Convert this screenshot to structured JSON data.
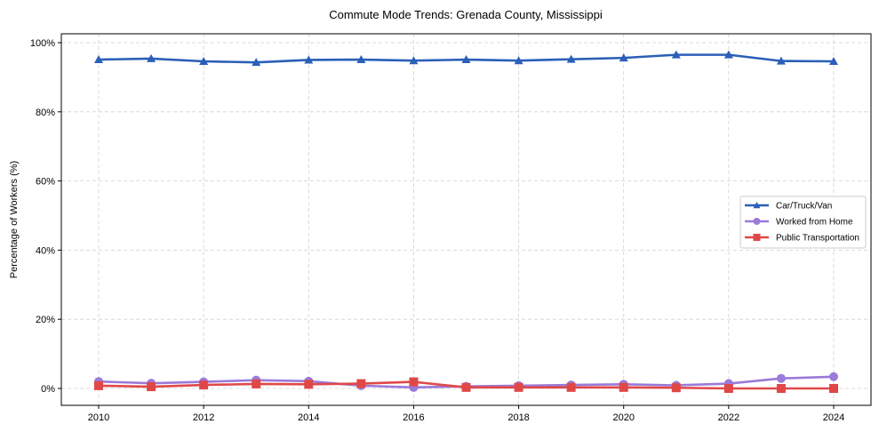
{
  "chart_data": {
    "type": "line",
    "title": "Commute Mode Trends: Grenada County, Mississippi",
    "xlabel": "",
    "ylabel": "Percentage of Workers (%)",
    "x": [
      2010,
      2011,
      2012,
      2013,
      2014,
      2015,
      2016,
      2017,
      2018,
      2019,
      2020,
      2021,
      2022,
      2023,
      2024
    ],
    "xticks": [
      2010,
      2012,
      2014,
      2016,
      2018,
      2020,
      2022,
      2024
    ],
    "yticks": [
      0,
      20,
      40,
      60,
      80,
      100
    ],
    "ytick_labels": [
      "0%",
      "20%",
      "40%",
      "60%",
      "80%",
      "100%"
    ],
    "xlim": [
      2009.3,
      2024.7
    ],
    "ylim": [
      -2.5,
      101.5
    ],
    "grid": true,
    "legend_position": "center right",
    "series": [
      {
        "name": "Car/Truck/Van",
        "color": "#2b5fb8",
        "marker": "triangle",
        "values": [
          95.1,
          95.4,
          94.6,
          94.3,
          95.0,
          95.1,
          94.8,
          95.1,
          94.8,
          95.2,
          95.6,
          96.5,
          96.5,
          94.7,
          94.6
        ]
      },
      {
        "name": "Worked from Home",
        "color": "#9b7ad9",
        "marker": "circle",
        "values": [
          2.0,
          1.5,
          1.9,
          2.4,
          2.1,
          0.8,
          0.3,
          0.6,
          0.8,
          1.0,
          1.2,
          0.9,
          1.4,
          2.9,
          3.4
        ]
      },
      {
        "name": "Public Transportation",
        "color": "#e04848",
        "marker": "square",
        "values": [
          0.8,
          0.5,
          1.0,
          1.3,
          1.2,
          1.4,
          1.9,
          0.3,
          0.3,
          0.3,
          0.3,
          0.2,
          0.0,
          0.0,
          0.0
        ]
      }
    ]
  }
}
